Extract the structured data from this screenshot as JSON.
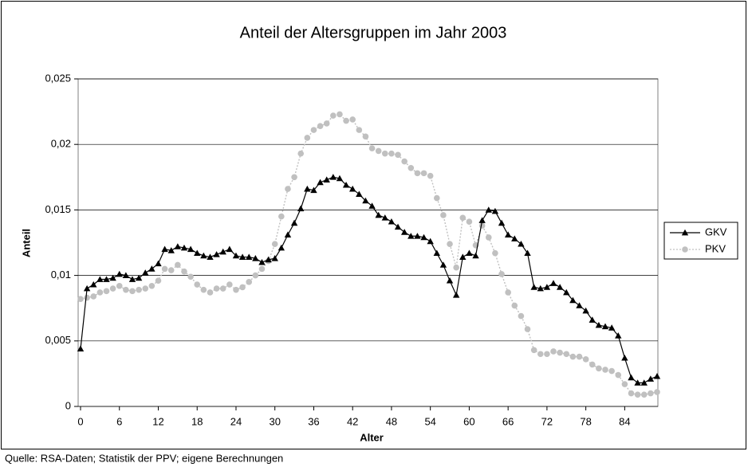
{
  "chart_data": {
    "type": "line",
    "title": "Anteil der Altersgruppen im Jahr 2003",
    "xlabel": "Alter",
    "ylabel": "Anteil",
    "source": "Quelle: RSA-Daten; Statistik der PPV; eigene Berechnungen",
    "x": [
      0,
      1,
      2,
      3,
      4,
      5,
      6,
      7,
      8,
      9,
      10,
      11,
      12,
      13,
      14,
      15,
      16,
      17,
      18,
      19,
      20,
      21,
      22,
      23,
      24,
      25,
      26,
      27,
      28,
      29,
      30,
      31,
      32,
      33,
      34,
      35,
      36,
      37,
      38,
      39,
      40,
      41,
      42,
      43,
      44,
      45,
      46,
      47,
      48,
      49,
      50,
      51,
      52,
      53,
      54,
      55,
      56,
      57,
      58,
      59,
      60,
      61,
      62,
      63,
      64,
      65,
      66,
      67,
      68,
      69,
      70,
      71,
      72,
      73,
      74,
      75,
      76,
      77,
      78,
      79,
      80,
      81,
      82,
      83,
      84,
      85,
      86,
      87,
      88,
      89
    ],
    "xlim": [
      0,
      89
    ],
    "xticks": [
      0,
      6,
      12,
      18,
      24,
      30,
      36,
      42,
      48,
      54,
      60,
      66,
      72,
      78,
      84
    ],
    "ylim": [
      0,
      0.025
    ],
    "yticks": [
      0,
      {
        "value": 0.005,
        "label": "0,005"
      },
      {
        "value": 0.01,
        "label": "0,01"
      },
      {
        "value": 0.015,
        "label": "0,015"
      },
      {
        "value": 0.02,
        "label": "0,02"
      },
      {
        "value": 0.025,
        "label": "0,025"
      }
    ],
    "grid": true,
    "legend": "right",
    "series": [
      {
        "name": "GKV",
        "color": "#000000",
        "marker": "triangle",
        "values": [
          0.0044,
          0.009,
          0.0093,
          0.0097,
          0.0097,
          0.0098,
          0.0101,
          0.01,
          0.0097,
          0.0098,
          0.0102,
          0.0105,
          0.0109,
          0.012,
          0.0119,
          0.0122,
          0.0121,
          0.012,
          0.0117,
          0.0115,
          0.0114,
          0.0116,
          0.0118,
          0.012,
          0.0115,
          0.0114,
          0.0114,
          0.0113,
          0.011,
          0.0112,
          0.0113,
          0.0121,
          0.0131,
          0.014,
          0.0151,
          0.0166,
          0.0165,
          0.0171,
          0.0173,
          0.0175,
          0.0174,
          0.0169,
          0.0166,
          0.0162,
          0.0157,
          0.0153,
          0.0146,
          0.0144,
          0.0141,
          0.0137,
          0.0133,
          0.013,
          0.013,
          0.0129,
          0.0126,
          0.0117,
          0.0108,
          0.0096,
          0.0085,
          0.0114,
          0.0117,
          0.0115,
          0.0142,
          0.015,
          0.0149,
          0.014,
          0.0131,
          0.0128,
          0.0124,
          0.0117,
          0.0091,
          0.009,
          0.0091,
          0.0094,
          0.0091,
          0.0087,
          0.0081,
          0.0077,
          0.0073,
          0.0066,
          0.0062,
          0.0061,
          0.006,
          0.0054,
          0.0037,
          0.0022,
          0.0018,
          0.0018,
          0.0021,
          0.0023
        ]
      },
      {
        "name": "PKV",
        "color": "#c0c0c0",
        "marker": "circle",
        "values": [
          0.0082,
          0.0083,
          0.0084,
          0.0087,
          0.0088,
          0.009,
          0.0092,
          0.0089,
          0.0088,
          0.0089,
          0.009,
          0.0092,
          0.0096,
          0.0105,
          0.0104,
          0.0108,
          0.0103,
          0.0099,
          0.0093,
          0.0089,
          0.0087,
          0.009,
          0.009,
          0.0093,
          0.0089,
          0.0091,
          0.0095,
          0.01,
          0.0105,
          0.0111,
          0.0124,
          0.0145,
          0.0166,
          0.0175,
          0.0193,
          0.0205,
          0.0211,
          0.0214,
          0.0216,
          0.0222,
          0.0223,
          0.0218,
          0.0219,
          0.0211,
          0.0206,
          0.0197,
          0.0195,
          0.0193,
          0.0193,
          0.0192,
          0.0187,
          0.0182,
          0.0178,
          0.0178,
          0.0176,
          0.0159,
          0.0146,
          0.0124,
          0.0106,
          0.0144,
          0.0141,
          0.0123,
          0.0138,
          0.0129,
          0.0117,
          0.0101,
          0.0087,
          0.0077,
          0.0069,
          0.0059,
          0.0043,
          0.004,
          0.004,
          0.0042,
          0.0041,
          0.004,
          0.0038,
          0.0038,
          0.0036,
          0.0032,
          0.0029,
          0.0028,
          0.0027,
          0.0024,
          0.0017,
          0.001,
          0.0009,
          0.0009,
          0.001,
          0.0011
        ]
      }
    ]
  }
}
